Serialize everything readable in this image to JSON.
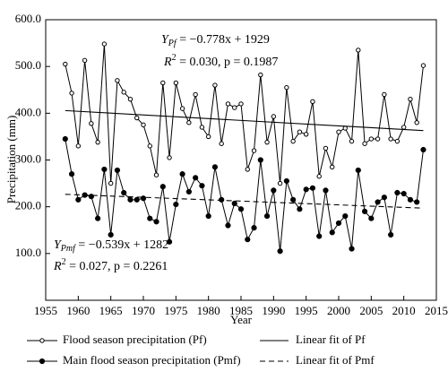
{
  "chart_data": {
    "type": "line",
    "x_label": "Year",
    "y_label": "Precipitation (mm)",
    "x": [
      1958,
      1959,
      1960,
      1961,
      1962,
      1963,
      1964,
      1965,
      1966,
      1967,
      1968,
      1969,
      1970,
      1971,
      1972,
      1973,
      1974,
      1975,
      1976,
      1977,
      1978,
      1979,
      1980,
      1981,
      1982,
      1983,
      1984,
      1985,
      1986,
      1987,
      1988,
      1989,
      1990,
      1991,
      1992,
      1993,
      1994,
      1995,
      1996,
      1997,
      1998,
      1999,
      2000,
      2001,
      2002,
      2003,
      2004,
      2005,
      2006,
      2007,
      2008,
      2009,
      2010,
      2011,
      2012,
      2013
    ],
    "series": [
      {
        "name": "Flood season precipitation (Pf)",
        "color": "#000000",
        "marker": "open",
        "values": [
          505,
          443,
          330,
          513,
          378,
          338,
          548,
          250,
          470,
          445,
          430,
          390,
          375,
          330,
          268,
          465,
          305,
          465,
          410,
          380,
          440,
          370,
          350,
          460,
          335,
          420,
          412,
          420,
          280,
          320,
          482,
          338,
          393,
          250,
          455,
          340,
          360,
          355,
          425,
          265,
          325,
          285,
          360,
          368,
          340,
          535,
          335,
          345,
          345,
          440,
          345,
          340,
          370,
          430,
          380,
          502
        ]
      },
      {
        "name": "Main flood season precipitation (Pmf)",
        "color": "#000000",
        "marker": "filled",
        "values": [
          345,
          270,
          215,
          225,
          222,
          175,
          280,
          140,
          278,
          230,
          215,
          215,
          218,
          175,
          168,
          243,
          125,
          205,
          270,
          232,
          262,
          245,
          180,
          285,
          215,
          160,
          207,
          195,
          130,
          155,
          300,
          180,
          235,
          105,
          255,
          215,
          195,
          237,
          240,
          137,
          235,
          145,
          165,
          180,
          110,
          278,
          190,
          175,
          210,
          220,
          140,
          230,
          228,
          215,
          210,
          322
        ]
      }
    ],
    "fits": [
      {
        "name": "Linear fit of Pf",
        "slope": -0.778,
        "intercept": 1929,
        "dash": false,
        "eq": {
          "var": "Y",
          "sub": "Pf",
          "rest": " = −0.778x + 1929"
        },
        "stats": {
          "var": "R",
          "sup": "2",
          "rest": " = 0.030, p = 0.1987"
        }
      },
      {
        "name": "Linear fit of Pmf",
        "slope": -0.539,
        "intercept": 1282,
        "dash": true,
        "eq": {
          "var": "Y",
          "sub": "Pmf",
          "rest": " = −0.539x + 1282"
        },
        "stats": {
          "var": "R",
          "sup": "2",
          "rest": " = 0.027, p = 0.2261"
        }
      }
    ],
    "xlim": [
      1955,
      2015
    ],
    "xticks": [
      1955,
      1960,
      1965,
      1970,
      1975,
      1980,
      1985,
      1990,
      1995,
      2000,
      2005,
      2010,
      2015
    ],
    "ylim": [
      0,
      600
    ],
    "yticks": [
      {
        "value": 100,
        "label": "100.0"
      },
      {
        "value": 200,
        "label": "200.0"
      },
      {
        "value": 300,
        "label": "300.0"
      },
      {
        "value": 400,
        "label": "400.0"
      },
      {
        "value": 500,
        "label": "500.0"
      },
      {
        "value": 600,
        "label": "600.0"
      }
    ],
    "grid": false,
    "legend": "bottom"
  }
}
